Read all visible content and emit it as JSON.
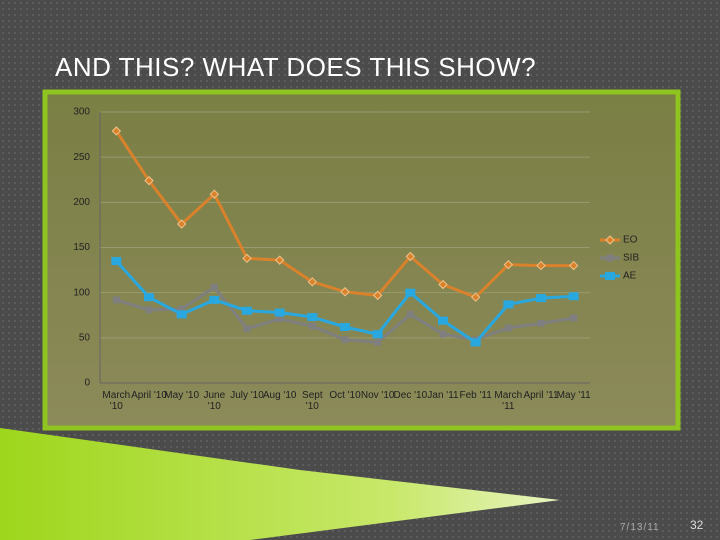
{
  "slide": {
    "title": "AND THIS?  WHAT DOES THIS SHOW?",
    "date": "7/13/11",
    "page": "32"
  },
  "chart_data": {
    "type": "line",
    "categories": [
      "March '10",
      "April '10",
      "May '10",
      "June '10",
      "July '10",
      "Aug '10",
      "Sept '10",
      "Oct '10",
      "Nov '10",
      "Dec '10",
      "Jan '11",
      "Feb '11",
      "March '11",
      "April '11",
      "May '11"
    ],
    "series": [
      {
        "name": "EO",
        "color": "#d9822b",
        "values": [
          279,
          224,
          176,
          209,
          138,
          136,
          112,
          101,
          97,
          140,
          109,
          95,
          131,
          130,
          130
        ]
      },
      {
        "name": "SIB",
        "color": "#7f7f7f",
        "values": [
          92,
          81,
          82,
          106,
          60,
          71,
          63,
          48,
          45,
          76,
          54,
          48,
          61,
          66,
          72
        ]
      },
      {
        "name": "AE",
        "color": "#29a8e0",
        "values": [
          135,
          95,
          76,
          92,
          80,
          78,
          73,
          62,
          54,
          100,
          69,
          45,
          87,
          94,
          96
        ]
      }
    ],
    "ylim": [
      0,
      300
    ],
    "yticks": [
      0,
      50,
      100,
      150,
      200,
      250,
      300
    ],
    "grid": true,
    "legend": "right"
  }
}
